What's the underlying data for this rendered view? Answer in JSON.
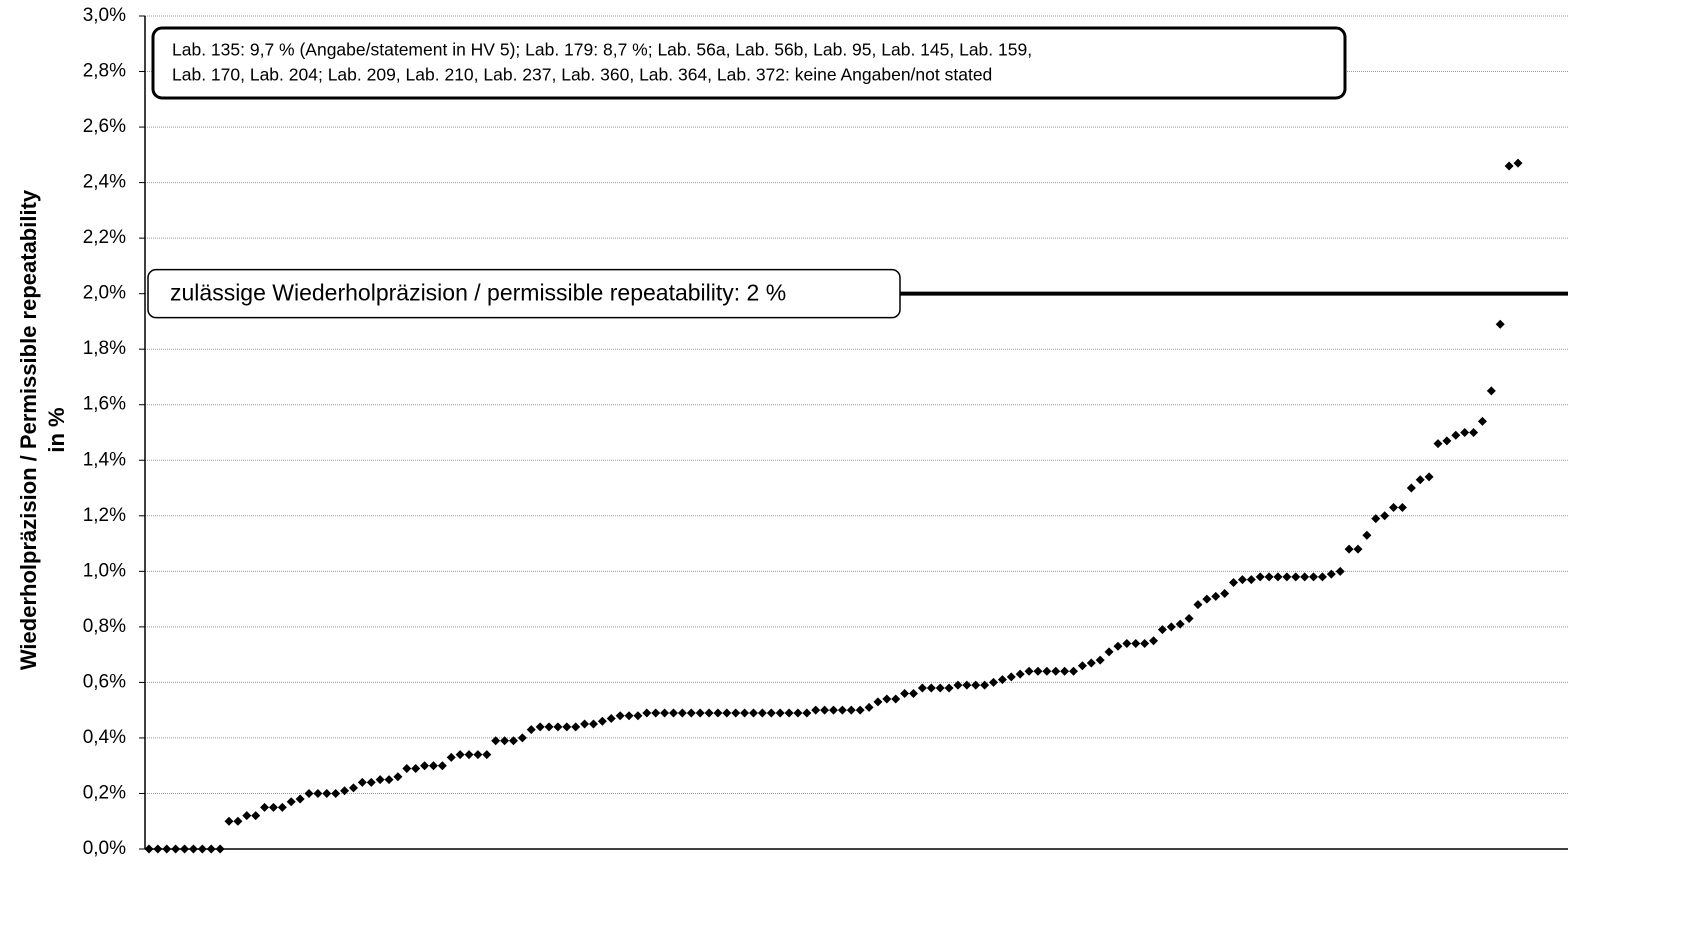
{
  "chart_data": {
    "type": "scatter",
    "ylabel": [
      "Wiederholpräzision / Permissible repeatability",
      "in %"
    ],
    "annotation": [
      "Lab. 135: 9,7 % (Angabe/statement in HV 5); Lab. 179: 8,7 %; Lab. 56a, Lab. 56b, Lab. 95, Lab. 145, Lab. 159,",
      "Lab. 170, Lab. 204; Lab. 209, Lab. 210, Lab. 237, Lab. 360, Lab. 364, Lab. 372: keine Angaben/not stated"
    ],
    "reference_line": {
      "value": 2,
      "label": "zulässige Wiederholpräzision / permissible repeatability: 2 %"
    },
    "color": "#000000",
    "values": [
      0,
      0,
      0,
      0,
      0,
      0,
      0,
      0,
      0,
      0.1,
      0.1,
      0.12,
      0.12,
      0.15,
      0.15,
      0.15,
      0.17,
      0.18,
      0.2,
      0.2,
      0.2,
      0.2,
      0.21,
      0.22,
      0.24,
      0.24,
      0.25,
      0.25,
      0.26,
      0.29,
      0.29,
      0.3,
      0.3,
      0.3,
      0.33,
      0.34,
      0.34,
      0.34,
      0.34,
      0.39,
      0.39,
      0.39,
      0.4,
      0.43,
      0.44,
      0.44,
      0.44,
      0.44,
      0.44,
      0.45,
      0.45,
      0.46,
      0.47,
      0.48,
      0.48,
      0.48,
      0.49,
      0.49,
      0.49,
      0.49,
      0.49,
      0.49,
      0.49,
      0.49,
      0.49,
      0.49,
      0.49,
      0.49,
      0.49,
      0.49,
      0.49,
      0.49,
      0.49,
      0.49,
      0.49,
      0.5,
      0.5,
      0.5,
      0.5,
      0.5,
      0.5,
      0.51,
      0.53,
      0.54,
      0.54,
      0.56,
      0.56,
      0.58,
      0.58,
      0.58,
      0.58,
      0.59,
      0.59,
      0.59,
      0.59,
      0.6,
      0.61,
      0.62,
      0.63,
      0.64,
      0.64,
      0.64,
      0.64,
      0.64,
      0.64,
      0.66,
      0.67,
      0.68,
      0.71,
      0.73,
      0.74,
      0.74,
      0.74,
      0.75,
      0.79,
      0.8,
      0.81,
      0.83,
      0.88,
      0.9,
      0.91,
      0.92,
      0.96,
      0.97,
      0.97,
      0.98,
      0.98,
      0.98,
      0.98,
      0.98,
      0.98,
      0.98,
      0.98,
      0.99,
      1.0,
      1.08,
      1.08,
      1.13,
      1.19,
      1.2,
      1.23,
      1.23,
      1.3,
      1.33,
      1.34,
      1.46,
      1.47,
      1.49,
      1.5,
      1.5,
      1.54,
      1.65,
      1.89,
      2.46,
      2.47
    ],
    "ylim": [
      0,
      3
    ],
    "yticks": [
      {
        "value": 0,
        "label": "0,0%"
      },
      {
        "value": 0.2,
        "label": "0,2%"
      },
      {
        "value": 0.4,
        "label": "0,4%"
      },
      {
        "value": 0.6,
        "label": "0,6%"
      },
      {
        "value": 0.8,
        "label": "0,8%"
      },
      {
        "value": 1,
        "label": "1,0%"
      },
      {
        "value": 1.2,
        "label": "1,2%"
      },
      {
        "value": 1.4,
        "label": "1,4%"
      },
      {
        "value": 1.6,
        "label": "1,6%"
      },
      {
        "value": 1.8,
        "label": "1,8%"
      },
      {
        "value": 2,
        "label": "2,0%"
      },
      {
        "value": 2.2,
        "label": "2,2%"
      },
      {
        "value": 2.4,
        "label": "2,4%"
      },
      {
        "value": 2.6,
        "label": "2,6%"
      },
      {
        "value": 2.8,
        "label": "2,8%"
      },
      {
        "value": 3,
        "label": "3,0%"
      }
    ],
    "grid": true
  }
}
